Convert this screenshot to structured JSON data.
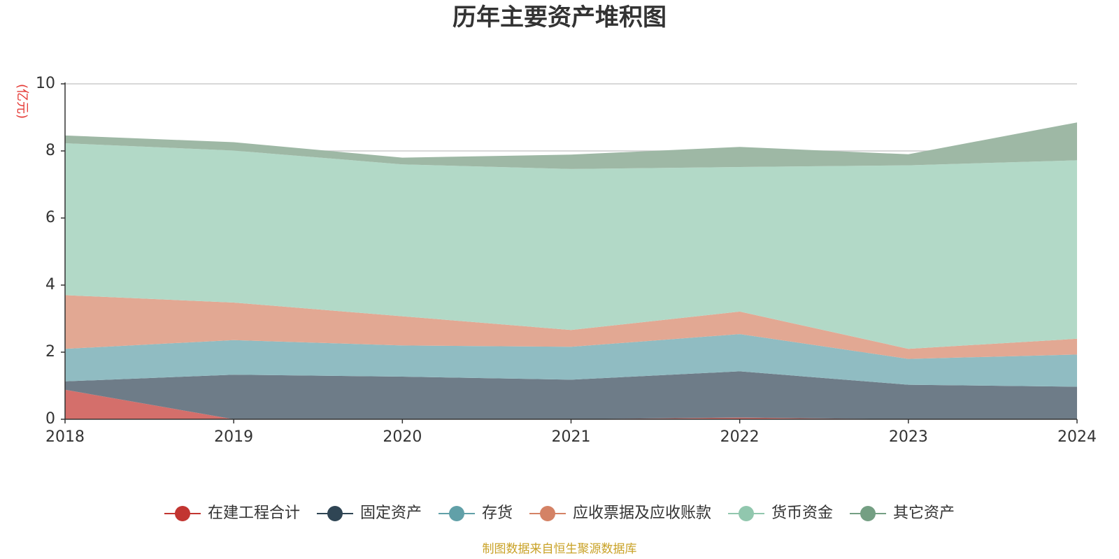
{
  "chart_data": {
    "type": "area",
    "stacked": true,
    "title": "历年主要资产堆积图",
    "y_unit": "(亿元)",
    "categories": [
      "2018",
      "2019",
      "2020",
      "2021",
      "2022",
      "2023",
      "2024"
    ],
    "ylim": [
      0,
      10
    ],
    "yticks": [
      0,
      2,
      4,
      6,
      8,
      10
    ],
    "ytick_labels": [
      "0",
      "2",
      "4",
      "6",
      "8",
      "10"
    ],
    "grid": true,
    "legend_position": "bottom",
    "series": [
      {
        "name": "在建工程合计",
        "color": "#c23531",
        "fill": "#d46f6b",
        "values": [
          0.88,
          0.0,
          0.0,
          0.0,
          0.05,
          0.0,
          0.0
        ]
      },
      {
        "name": "固定资产",
        "color": "#2f4554",
        "fill": "#6e7c88",
        "values": [
          0.25,
          1.33,
          1.27,
          1.18,
          1.38,
          1.03,
          0.97
        ]
      },
      {
        "name": "存货",
        "color": "#61a0a8",
        "fill": "#90bcc2",
        "values": [
          0.97,
          1.03,
          0.93,
          0.98,
          1.11,
          0.77,
          0.96
        ]
      },
      {
        "name": "应收票据及应收账款",
        "color": "#d48265",
        "fill": "#e2a893",
        "values": [
          1.6,
          1.12,
          0.87,
          0.5,
          0.67,
          0.3,
          0.47
        ]
      },
      {
        "name": "货币资金",
        "color": "#91c7ae",
        "fill": "#b2d9c7",
        "values": [
          4.53,
          4.53,
          4.53,
          4.8,
          4.31,
          5.47,
          5.32
        ]
      },
      {
        "name": "其它资产",
        "color": "#749f83",
        "fill": "#9eb8a5",
        "values": [
          0.23,
          0.25,
          0.2,
          0.43,
          0.6,
          0.33,
          1.13
        ]
      }
    ]
  },
  "footer": {
    "source": "制图数据来自恒生聚源数据库"
  }
}
